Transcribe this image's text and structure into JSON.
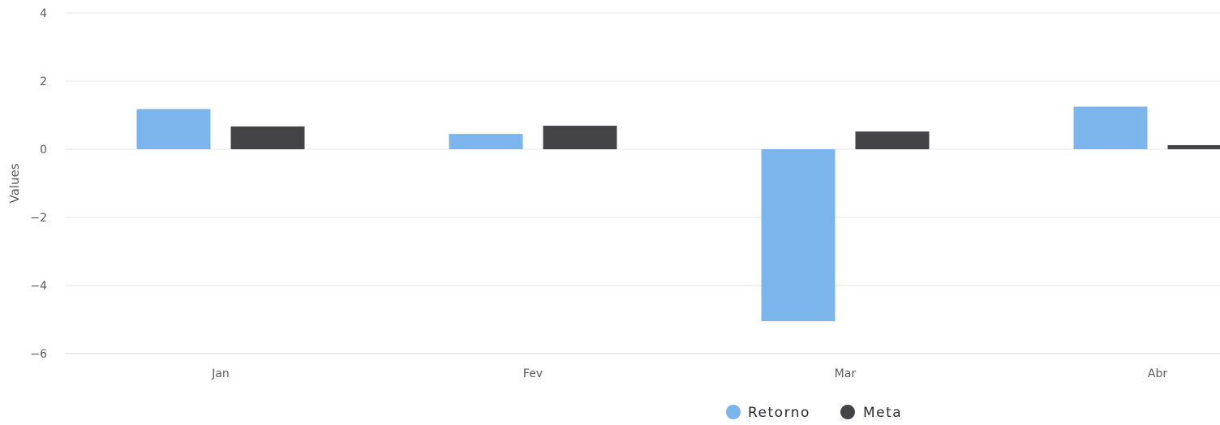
{
  "chart_data": {
    "type": "bar",
    "title": "",
    "xlabel": "",
    "ylabel": "Values",
    "ylim": [
      -6,
      4
    ],
    "yticks": [
      4,
      2,
      0,
      -2,
      -4,
      -6
    ],
    "ytick_labels": [
      "4",
      "2",
      "0",
      "−2",
      "−4",
      "−6"
    ],
    "categories": [
      "Jan",
      "Fev",
      "Mar",
      "Abr"
    ],
    "series": [
      {
        "name": "Retorno",
        "color": "#7cb5ec",
        "values": [
          1.18,
          0.45,
          -5.05,
          1.25
        ]
      },
      {
        "name": "Meta",
        "color": "#434348",
        "values": [
          0.67,
          0.69,
          0.52,
          0.12
        ]
      }
    ],
    "grid": true,
    "legend_position": "bottom-center"
  }
}
